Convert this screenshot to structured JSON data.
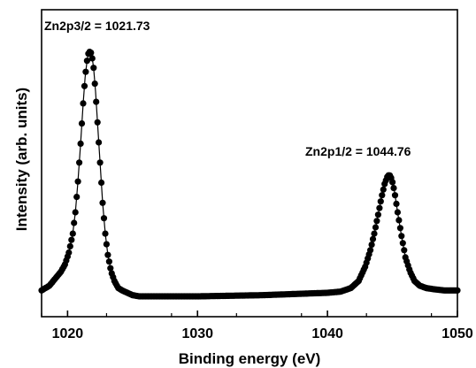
{
  "chart_data": {
    "type": "scatter",
    "title": "",
    "xlabel": "Binding energy (eV)",
    "ylabel": "Intensity (arb. units)",
    "xlim": [
      1018,
      1050
    ],
    "ylim": [
      0,
      1.05
    ],
    "y_ticks_shown": false,
    "x_ticks": [
      1020,
      1030,
      1040,
      1050
    ],
    "x_tick_labels": [
      "1020",
      "1030",
      "1040",
      "1050"
    ],
    "grid": false,
    "legend": "none",
    "marker_color": "#000000",
    "line_color": "#000000",
    "annotations": [
      {
        "text": "Zn2p3/2 = 1021.73",
        "x": 1021.73
      },
      {
        "text": "Zn2p1/2 = 1044.76",
        "x": 1044.76
      }
    ],
    "series": [
      {
        "x": [
          1018.0,
          1018.3,
          1018.6,
          1018.9,
          1019.2,
          1019.5,
          1019.8,
          1020.1,
          1020.4,
          1020.6,
          1020.8,
          1021.0,
          1021.2,
          1021.35,
          1021.5,
          1021.6,
          1021.73,
          1021.85,
          1022.0,
          1022.15,
          1022.3,
          1022.5,
          1022.7,
          1022.9,
          1023.1,
          1023.35,
          1023.6,
          1023.9,
          1024.2,
          1024.6,
          1025.0,
          1025.5,
          1026.0,
          1027.0,
          1028.0,
          1029.0,
          1030.0,
          1031.0,
          1032.0,
          1033.0,
          1034.0,
          1035.0,
          1036.0,
          1037.0,
          1038.0,
          1039.0,
          1040.0,
          1041.0,
          1041.8,
          1042.4,
          1042.9,
          1043.3,
          1043.6,
          1043.9,
          1044.15,
          1044.4,
          1044.6,
          1044.76,
          1044.95,
          1045.15,
          1045.4,
          1045.7,
          1046.0,
          1046.35,
          1046.7,
          1047.1,
          1047.6,
          1048.2,
          1049.0,
          1050.0
        ],
        "y": [
          0.01,
          0.02,
          0.03,
          0.05,
          0.07,
          0.09,
          0.12,
          0.17,
          0.25,
          0.34,
          0.47,
          0.63,
          0.8,
          0.91,
          0.98,
          1.01,
          1.02,
          1.01,
          0.95,
          0.85,
          0.72,
          0.55,
          0.38,
          0.25,
          0.16,
          0.09,
          0.05,
          0.02,
          0.01,
          0.0,
          -0.01,
          -0.015,
          -0.015,
          -0.015,
          -0.015,
          -0.015,
          -0.015,
          -0.014,
          -0.013,
          -0.012,
          -0.011,
          -0.01,
          -0.008,
          -0.006,
          -0.004,
          -0.002,
          0.0,
          0.005,
          0.02,
          0.05,
          0.11,
          0.18,
          0.25,
          0.33,
          0.4,
          0.46,
          0.49,
          0.5,
          0.48,
          0.43,
          0.34,
          0.24,
          0.15,
          0.09,
          0.05,
          0.03,
          0.02,
          0.015,
          0.01,
          0.01
        ]
      }
    ]
  }
}
